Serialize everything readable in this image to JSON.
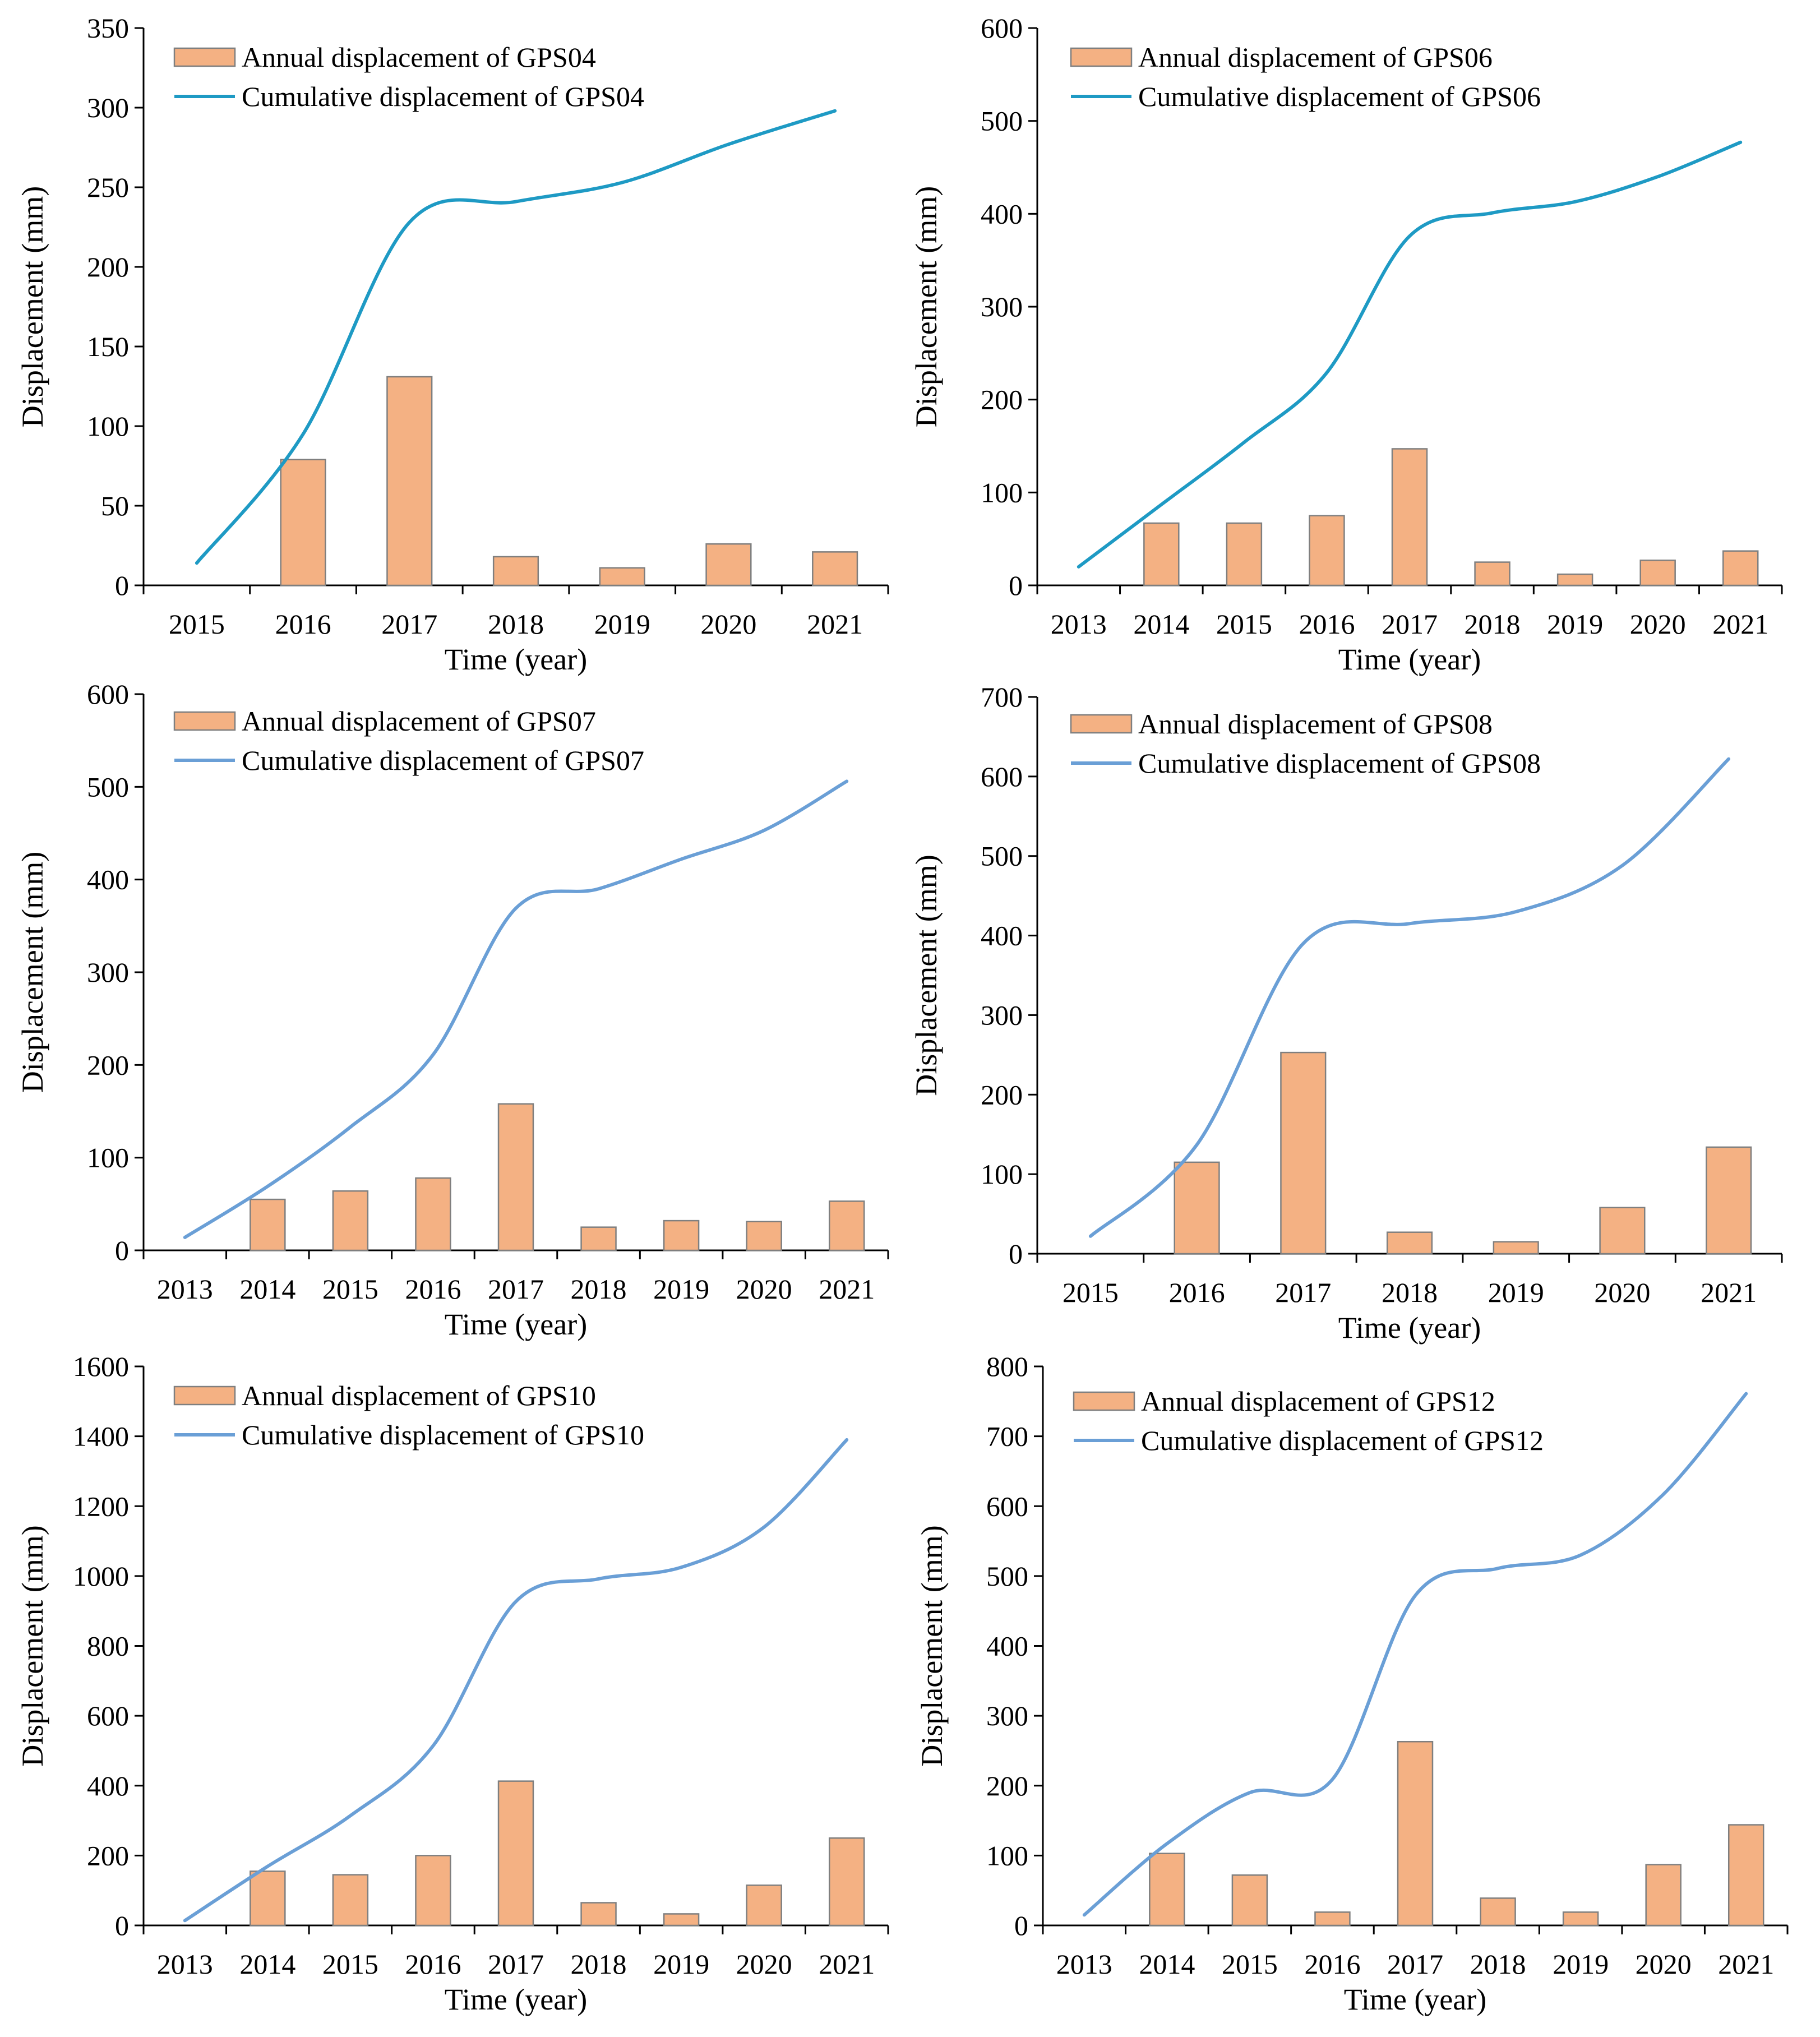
{
  "colors": {
    "bar_fill": "#F4B183",
    "bar_stroke": "#7F7F7F",
    "axis": "#000000",
    "line_dark_teal": "#1E9AC4",
    "line_blue": "#6A9FD6"
  },
  "chart_data": [
    {
      "type": "bar+line",
      "title": "",
      "xlabel": "Time (year)",
      "ylabel": "Displacement (mm)",
      "ylim": [
        0,
        350
      ],
      "ystep": 50,
      "categories": [
        "2015",
        "2016",
        "2017",
        "2018",
        "2019",
        "2020",
        "2021"
      ],
      "legend_position": "top-left",
      "series": [
        {
          "name": "Annual displacement of GPS04",
          "kind": "bar",
          "values": [
            null,
            79,
            131,
            18,
            11,
            26,
            21
          ]
        },
        {
          "name": "Cumulative displacement of GPS04",
          "kind": "line",
          "color": "#1E9AC4",
          "values": [
            14,
            95,
            228,
            241,
            253,
            277,
            298
          ]
        }
      ]
    },
    {
      "type": "bar+line",
      "title": "",
      "xlabel": "Time (year)",
      "ylabel": "Displacement (mm)",
      "ylim": [
        0,
        600
      ],
      "ystep": 100,
      "categories": [
        "2013",
        "2014",
        "2015",
        "2016",
        "2017",
        "2018",
        "2019",
        "2020",
        "2021"
      ],
      "legend_position": "top-left",
      "series": [
        {
          "name": "Annual displacement of GPS06",
          "kind": "bar",
          "values": [
            null,
            67,
            67,
            75,
            147,
            25,
            12,
            27,
            37
          ]
        },
        {
          "name": "Cumulative displacement of GPS06",
          "kind": "line",
          "color": "#1E9AC4",
          "values": [
            20,
            87,
            154,
            229,
            376,
            401,
            413,
            440,
            477
          ]
        }
      ]
    },
    {
      "type": "bar+line",
      "title": "",
      "xlabel": "Time (year)",
      "ylabel": "Displacement (mm)",
      "ylim": [
        0,
        600
      ],
      "ystep": 100,
      "categories": [
        "2013",
        "2014",
        "2015",
        "2016",
        "2017",
        "2018",
        "2019",
        "2020",
        "2021"
      ],
      "legend_position": "top-left",
      "series": [
        {
          "name": "Annual displacement of GPS07",
          "kind": "bar",
          "values": [
            null,
            55,
            64,
            78,
            158,
            25,
            32,
            31,
            53
          ]
        },
        {
          "name": "Cumulative displacement of GPS07",
          "kind": "line",
          "color": "#6A9FD6",
          "values": [
            14,
            69,
            133,
            211,
            369,
            390,
            422,
            453,
            506
          ]
        }
      ]
    },
    {
      "type": "bar+line",
      "title": "",
      "xlabel": "Time (year)",
      "ylabel": "Displacement (mm)",
      "ylim": [
        0,
        700
      ],
      "ystep": 100,
      "categories": [
        "2015",
        "2016",
        "2017",
        "2018",
        "2019",
        "2020",
        "2021"
      ],
      "legend_position": "top-left",
      "series": [
        {
          "name": "Annual displacement of GPS08",
          "kind": "bar",
          "values": [
            null,
            115,
            253,
            27,
            15,
            58,
            134
          ]
        },
        {
          "name": "Cumulative displacement of GPS08",
          "kind": "line",
          "color": "#6A9FD6",
          "values": [
            22,
            137,
            390,
            415,
            430,
            488,
            622
          ]
        }
      ]
    },
    {
      "type": "bar+line",
      "title": "",
      "xlabel": "Time (year)",
      "ylabel": "Displacement (mm)",
      "ylim": [
        0,
        1600
      ],
      "ystep": 200,
      "categories": [
        "2013",
        "2014",
        "2015",
        "2016",
        "2017",
        "2018",
        "2019",
        "2020",
        "2021"
      ],
      "legend_position": "top-left",
      "series": [
        {
          "name": "Annual displacement of GPS10",
          "kind": "bar",
          "values": [
            null,
            155,
            145,
            200,
            413,
            65,
            33,
            115,
            250
          ]
        },
        {
          "name": "Cumulative displacement of GPS10",
          "kind": "line",
          "color": "#6A9FD6",
          "values": [
            14,
            169,
            314,
            514,
            927,
            992,
            1025,
            1140,
            1390
          ]
        }
      ]
    },
    {
      "type": "bar+line",
      "title": "",
      "xlabel": "Time (year)",
      "ylabel": "Displacement (mm)",
      "ylim": [
        0,
        800
      ],
      "ystep": 100,
      "categories": [
        "2013",
        "2014",
        "2015",
        "2016",
        "2017",
        "2018",
        "2019",
        "2020",
        "2021"
      ],
      "legend_position": "top-left",
      "series": [
        {
          "name": "Annual displacement of GPS12",
          "kind": "bar",
          "values": [
            null,
            103,
            72,
            19,
            263,
            39,
            19,
            87,
            144
          ]
        },
        {
          "name": "Cumulative displacement of GPS12",
          "kind": "line",
          "color": "#6A9FD6",
          "values": [
            15,
            117,
            190,
            209,
            472,
            511,
            530,
            617,
            761
          ]
        }
      ]
    }
  ]
}
